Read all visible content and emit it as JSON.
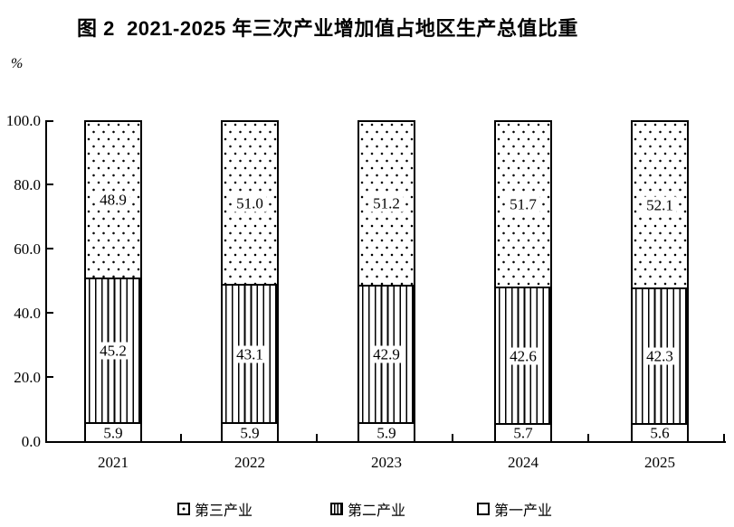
{
  "title": "图 2  2021-2025 年三次产业增加值占地区生产总值比重",
  "unit_label": "%",
  "colors": {
    "ink": "#000000",
    "background": "#ffffff"
  },
  "chart_data": {
    "type": "bar",
    "stacked": true,
    "title": "图 2  2021-2025 年三次产业增加值占地区生产总值比重",
    "ylabel": "%",
    "ylim": [
      0,
      100
    ],
    "ytick_values": [
      0,
      20,
      40,
      60,
      80,
      100
    ],
    "ytick_labels": [
      "0.0",
      "20.0",
      "40.0",
      "60.0",
      "80.0",
      "100.0"
    ],
    "grid": false,
    "categories": [
      "2021",
      "2022",
      "2023",
      "2024",
      "2025"
    ],
    "series": [
      {
        "name": "第一产业",
        "key": "primary-industry",
        "pattern": "plain",
        "values": [
          5.9,
          5.9,
          5.9,
          5.7,
          5.6
        ],
        "labels": [
          "5.9",
          "5.9",
          "5.9",
          "5.7",
          "5.6"
        ]
      },
      {
        "name": "第二产业",
        "key": "secondary-industry",
        "pattern": "stripes",
        "values": [
          45.2,
          43.1,
          42.9,
          42.6,
          42.3
        ],
        "labels": [
          "45.2",
          "43.1",
          "42.9",
          "42.6",
          "42.3"
        ]
      },
      {
        "name": "第三产业",
        "key": "tertiary-industry",
        "pattern": "dots",
        "values": [
          48.9,
          51.0,
          51.2,
          51.7,
          52.1
        ],
        "labels": [
          "48.9",
          "51.0",
          "51.2",
          "51.7",
          "52.1"
        ]
      }
    ],
    "legend_position": "bottom",
    "legend": [
      {
        "label": "第三产业",
        "pattern": "dots",
        "key": "tertiary-industry"
      },
      {
        "label": "第二产业",
        "pattern": "stripes",
        "key": "secondary-industry"
      },
      {
        "label": "第一产业",
        "pattern": "plain",
        "key": "primary-industry"
      }
    ]
  }
}
